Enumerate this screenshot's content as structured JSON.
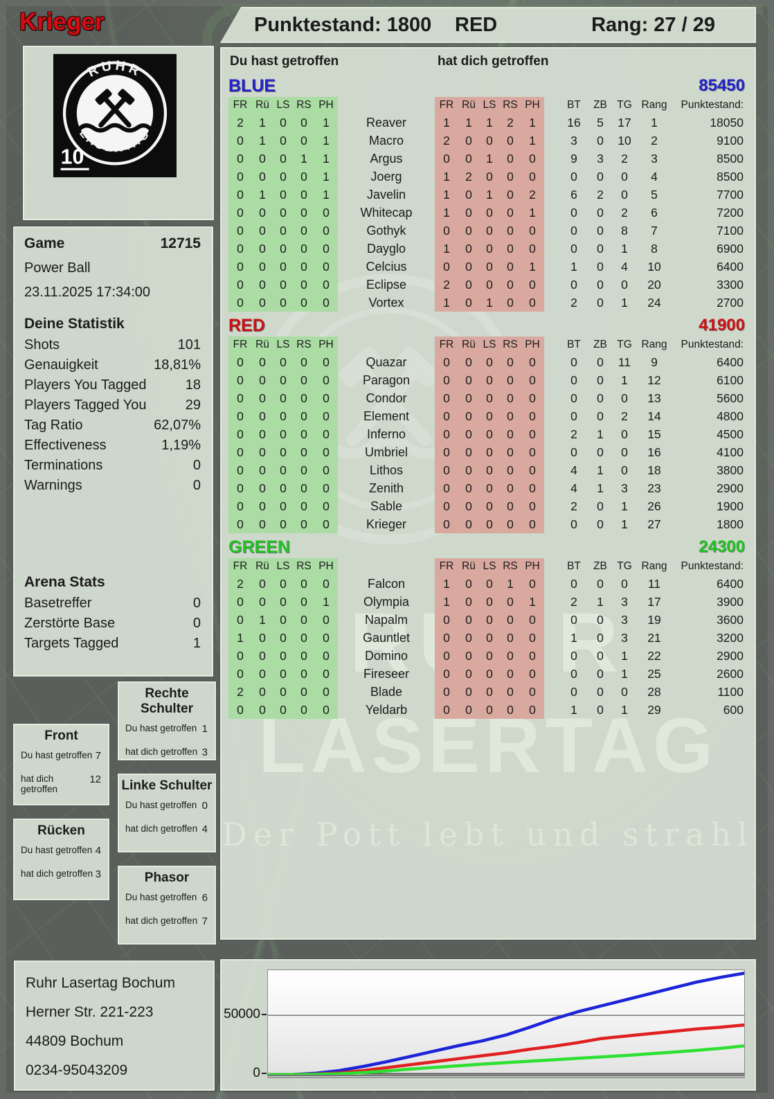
{
  "header": {
    "player_name": "Krieger",
    "score_label": "Punktestand: 1800",
    "team": "RED",
    "rank_label": "Rang: 27 / 29"
  },
  "labels": {
    "you_hit": "Du hast getroffen",
    "hit_you": "hat dich getroffen"
  },
  "columns": {
    "body": [
      "FR",
      "Rü",
      "LS",
      "RS",
      "PH"
    ],
    "extra": [
      "BT",
      "ZB",
      "TG",
      "Rang"
    ],
    "points": "Punktestand:"
  },
  "teams": [
    {
      "name": "BLUE",
      "total": "85450",
      "color": "#2323c8",
      "rows": [
        {
          "player": "Reaver",
          "you": [
            2,
            1,
            0,
            0,
            1
          ],
          "them": [
            1,
            1,
            1,
            2,
            1
          ],
          "bt": 16,
          "zb": 5,
          "tg": 17,
          "rang": 1,
          "punkte": "18050"
        },
        {
          "player": "Macro",
          "you": [
            0,
            1,
            0,
            0,
            1
          ],
          "them": [
            2,
            0,
            0,
            0,
            1
          ],
          "bt": 3,
          "zb": 0,
          "tg": 10,
          "rang": 2,
          "punkte": "9100"
        },
        {
          "player": "Argus",
          "you": [
            0,
            0,
            0,
            1,
            1
          ],
          "them": [
            0,
            0,
            1,
            0,
            0
          ],
          "bt": 9,
          "zb": 3,
          "tg": 2,
          "rang": 3,
          "punkte": "8500"
        },
        {
          "player": "Joerg",
          "you": [
            0,
            0,
            0,
            0,
            1
          ],
          "them": [
            1,
            2,
            0,
            0,
            0
          ],
          "bt": 0,
          "zb": 0,
          "tg": 0,
          "rang": 4,
          "punkte": "8500"
        },
        {
          "player": "Javelin",
          "you": [
            0,
            1,
            0,
            0,
            1
          ],
          "them": [
            1,
            0,
            1,
            0,
            2
          ],
          "bt": 6,
          "zb": 2,
          "tg": 0,
          "rang": 5,
          "punkte": "7700"
        },
        {
          "player": "Whitecap",
          "you": [
            0,
            0,
            0,
            0,
            0
          ],
          "them": [
            1,
            0,
            0,
            0,
            1
          ],
          "bt": 0,
          "zb": 0,
          "tg": 2,
          "rang": 6,
          "punkte": "7200"
        },
        {
          "player": "Gothyk",
          "you": [
            0,
            0,
            0,
            0,
            0
          ],
          "them": [
            0,
            0,
            0,
            0,
            0
          ],
          "bt": 0,
          "zb": 0,
          "tg": 8,
          "rang": 7,
          "punkte": "7100"
        },
        {
          "player": "Dayglo",
          "you": [
            0,
            0,
            0,
            0,
            0
          ],
          "them": [
            1,
            0,
            0,
            0,
            0
          ],
          "bt": 0,
          "zb": 0,
          "tg": 1,
          "rang": 8,
          "punkte": "6900"
        },
        {
          "player": "Celcius",
          "you": [
            0,
            0,
            0,
            0,
            0
          ],
          "them": [
            0,
            0,
            0,
            0,
            1
          ],
          "bt": 1,
          "zb": 0,
          "tg": 4,
          "rang": 10,
          "punkte": "6400"
        },
        {
          "player": "Eclipse",
          "you": [
            0,
            0,
            0,
            0,
            0
          ],
          "them": [
            2,
            0,
            0,
            0,
            0
          ],
          "bt": 0,
          "zb": 0,
          "tg": 0,
          "rang": 20,
          "punkte": "3300"
        },
        {
          "player": "Vortex",
          "you": [
            0,
            0,
            0,
            0,
            0
          ],
          "them": [
            1,
            0,
            1,
            0,
            0
          ],
          "bt": 2,
          "zb": 0,
          "tg": 1,
          "rang": 24,
          "punkte": "2700"
        }
      ]
    },
    {
      "name": "RED",
      "total": "41900",
      "color": "#cc1215",
      "rows": [
        {
          "player": "Quazar",
          "you": [
            0,
            0,
            0,
            0,
            0
          ],
          "them": [
            0,
            0,
            0,
            0,
            0
          ],
          "bt": 0,
          "zb": 0,
          "tg": 11,
          "rang": 9,
          "punkte": "6400"
        },
        {
          "player": "Paragon",
          "you": [
            0,
            0,
            0,
            0,
            0
          ],
          "them": [
            0,
            0,
            0,
            0,
            0
          ],
          "bt": 0,
          "zb": 0,
          "tg": 1,
          "rang": 12,
          "punkte": "6100"
        },
        {
          "player": "Condor",
          "you": [
            0,
            0,
            0,
            0,
            0
          ],
          "them": [
            0,
            0,
            0,
            0,
            0
          ],
          "bt": 0,
          "zb": 0,
          "tg": 0,
          "rang": 13,
          "punkte": "5600"
        },
        {
          "player": "Element",
          "you": [
            0,
            0,
            0,
            0,
            0
          ],
          "them": [
            0,
            0,
            0,
            0,
            0
          ],
          "bt": 0,
          "zb": 0,
          "tg": 2,
          "rang": 14,
          "punkte": "4800"
        },
        {
          "player": "Inferno",
          "you": [
            0,
            0,
            0,
            0,
            0
          ],
          "them": [
            0,
            0,
            0,
            0,
            0
          ],
          "bt": 2,
          "zb": 1,
          "tg": 0,
          "rang": 15,
          "punkte": "4500"
        },
        {
          "player": "Umbriel",
          "you": [
            0,
            0,
            0,
            0,
            0
          ],
          "them": [
            0,
            0,
            0,
            0,
            0
          ],
          "bt": 0,
          "zb": 0,
          "tg": 0,
          "rang": 16,
          "punkte": "4100"
        },
        {
          "player": "Lithos",
          "you": [
            0,
            0,
            0,
            0,
            0
          ],
          "them": [
            0,
            0,
            0,
            0,
            0
          ],
          "bt": 4,
          "zb": 1,
          "tg": 0,
          "rang": 18,
          "punkte": "3800"
        },
        {
          "player": "Zenith",
          "you": [
            0,
            0,
            0,
            0,
            0
          ],
          "them": [
            0,
            0,
            0,
            0,
            0
          ],
          "bt": 4,
          "zb": 1,
          "tg": 3,
          "rang": 23,
          "punkte": "2900"
        },
        {
          "player": "Sable",
          "you": [
            0,
            0,
            0,
            0,
            0
          ],
          "them": [
            0,
            0,
            0,
            0,
            0
          ],
          "bt": 2,
          "zb": 0,
          "tg": 1,
          "rang": 26,
          "punkte": "1900"
        },
        {
          "player": "Krieger",
          "you": [
            0,
            0,
            0,
            0,
            0
          ],
          "them": [
            0,
            0,
            0,
            0,
            0
          ],
          "bt": 0,
          "zb": 0,
          "tg": 1,
          "rang": 27,
          "punkte": "1800"
        }
      ]
    },
    {
      "name": "GREEN",
      "total": "24300",
      "color": "#21c421",
      "rows": [
        {
          "player": "Falcon",
          "you": [
            2,
            0,
            0,
            0,
            0
          ],
          "them": [
            1,
            0,
            0,
            1,
            0
          ],
          "bt": 0,
          "zb": 0,
          "tg": 0,
          "rang": 11,
          "punkte": "6400"
        },
        {
          "player": "Olympia",
          "you": [
            0,
            0,
            0,
            0,
            1
          ],
          "them": [
            1,
            0,
            0,
            0,
            1
          ],
          "bt": 2,
          "zb": 1,
          "tg": 3,
          "rang": 17,
          "punkte": "3900"
        },
        {
          "player": "Napalm",
          "you": [
            0,
            1,
            0,
            0,
            0
          ],
          "them": [
            0,
            0,
            0,
            0,
            0
          ],
          "bt": 0,
          "zb": 0,
          "tg": 3,
          "rang": 19,
          "punkte": "3600"
        },
        {
          "player": "Gauntlet",
          "you": [
            1,
            0,
            0,
            0,
            0
          ],
          "them": [
            0,
            0,
            0,
            0,
            0
          ],
          "bt": 1,
          "zb": 0,
          "tg": 3,
          "rang": 21,
          "punkte": "3200"
        },
        {
          "player": "Domino",
          "you": [
            0,
            0,
            0,
            0,
            0
          ],
          "them": [
            0,
            0,
            0,
            0,
            0
          ],
          "bt": 0,
          "zb": 0,
          "tg": 1,
          "rang": 22,
          "punkte": "2900"
        },
        {
          "player": "Fireseer",
          "you": [
            0,
            0,
            0,
            0,
            0
          ],
          "them": [
            0,
            0,
            0,
            0,
            0
          ],
          "bt": 0,
          "zb": 0,
          "tg": 1,
          "rang": 25,
          "punkte": "2600"
        },
        {
          "player": "Blade",
          "you": [
            2,
            0,
            0,
            0,
            0
          ],
          "them": [
            0,
            0,
            0,
            0,
            0
          ],
          "bt": 0,
          "zb": 0,
          "tg": 0,
          "rang": 28,
          "punkte": "1100"
        },
        {
          "player": "Yeldarb",
          "you": [
            0,
            0,
            0,
            0,
            0
          ],
          "them": [
            0,
            0,
            0,
            0,
            0
          ],
          "bt": 1,
          "zb": 0,
          "tg": 1,
          "rang": 29,
          "punkte": "600"
        }
      ]
    }
  ],
  "game": {
    "title": "Game",
    "number": "12715",
    "mode": "Power Ball",
    "datetime": "23.11.2025 17:34:00",
    "stats_title": "Deine Statistik",
    "stats": [
      {
        "label": "Shots",
        "value": "101"
      },
      {
        "label": "Genauigkeit",
        "value": "18,81%"
      },
      {
        "label": "Players You Tagged",
        "value": "18"
      },
      {
        "label": "Players Tagged You",
        "value": "29"
      },
      {
        "label": "Tag Ratio",
        "value": "62,07%"
      },
      {
        "label": "Effectiveness",
        "value": "1,19%"
      },
      {
        "label": "Terminations",
        "value": "0"
      },
      {
        "label": "Warnings",
        "value": "0"
      }
    ],
    "arena_title": "Arena Stats",
    "arena": [
      {
        "label": "Basetreffer",
        "value": "0"
      },
      {
        "label": "Zerstörte Base",
        "value": "0"
      },
      {
        "label": "Targets Tagged",
        "value": "1"
      }
    ]
  },
  "body_parts": [
    {
      "title": "Front",
      "you": "7",
      "them": "12"
    },
    {
      "title": "Rücken",
      "you": "4",
      "them": "3"
    },
    {
      "title": "Rechte Schulter",
      "you": "1",
      "them": "3"
    },
    {
      "title": "Linke Schulter",
      "you": "0",
      "them": "4"
    },
    {
      "title": "Phasor",
      "you": "6",
      "them": "7"
    }
  ],
  "address": [
    "Ruhr Lasertag Bochum",
    "Herner Str. 221-223",
    "44809 Bochum",
    "0234-95043209"
  ],
  "logo": {
    "top": "RUHR",
    "bottom": "LASERTAG",
    "badge": "10"
  },
  "watermark": {
    "line1": "RUHR",
    "line2": "LASERTAG",
    "slogan": "Der Pott lebt und strahlt"
  },
  "chart_data": {
    "type": "line",
    "title": "",
    "xlabel": "",
    "ylabel": "",
    "ylim": [
      0,
      88000
    ],
    "gridline": 50000,
    "yticks": [
      "50000",
      "0"
    ],
    "x_percent": [
      0,
      5,
      10,
      15,
      20,
      25,
      30,
      35,
      40,
      45,
      50,
      55,
      60,
      65,
      70,
      75,
      80,
      85,
      90,
      95,
      100
    ],
    "series": [
      {
        "name": "BLUE",
        "color": "#1c24d8",
        "values": [
          0,
          200,
          1200,
          3500,
          7000,
          11000,
          15500,
          20000,
          24500,
          28500,
          33500,
          40000,
          47000,
          53000,
          58000,
          63000,
          68000,
          73000,
          78000,
          82000,
          85450
        ]
      },
      {
        "name": "RED",
        "color": "#e02020",
        "values": [
          0,
          100,
          500,
          1500,
          3500,
          6000,
          8500,
          11000,
          13500,
          16000,
          18500,
          21500,
          24000,
          27000,
          30500,
          32500,
          34500,
          36500,
          38500,
          40000,
          41900
        ]
      },
      {
        "name": "GREEN",
        "color": "#2ee032",
        "values": [
          0,
          50,
          300,
          800,
          1800,
          3200,
          4800,
          6200,
          7600,
          9000,
          10200,
          11400,
          12600,
          13800,
          15000,
          16200,
          17600,
          19000,
          20600,
          22200,
          24300
        ]
      }
    ],
    "legend": false
  }
}
